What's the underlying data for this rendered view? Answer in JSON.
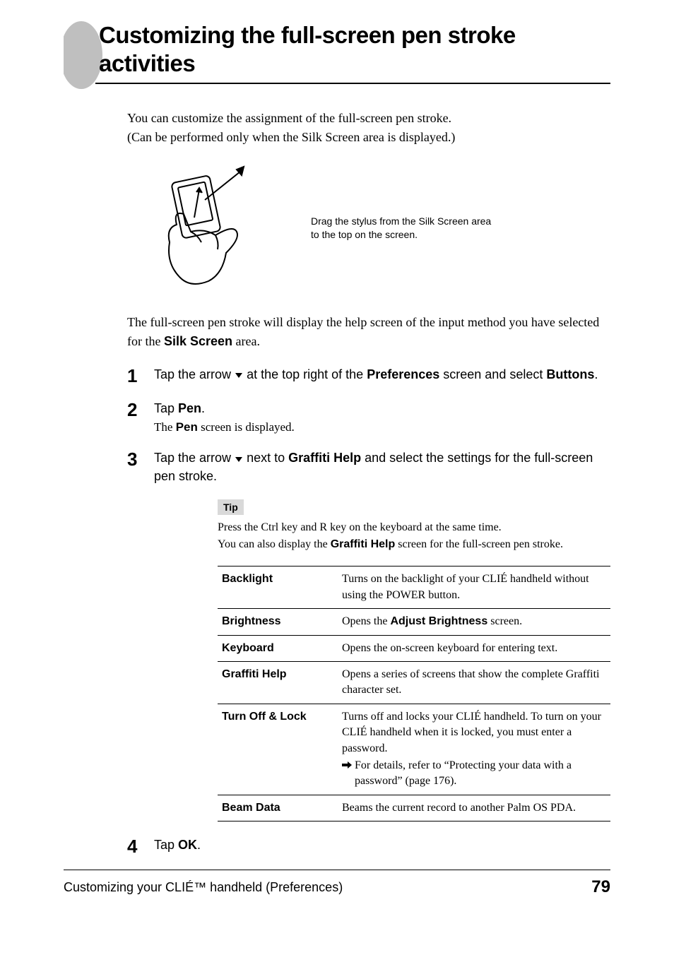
{
  "title": "Customizing the full-screen pen stroke activities",
  "intro_lines": [
    "You can customize the assignment of the full-screen pen stroke.",
    "(Can be performed only when the Silk Screen area is displayed.)"
  ],
  "figure_caption": "Drag the stylus from the Silk Screen area to the top on the screen.",
  "after_figure_prefix": "The full-screen pen stroke will display the help screen of the input method you have selected for the ",
  "after_figure_bold": "Silk Screen",
  "after_figure_suffix": " area.",
  "steps": [
    {
      "n": "1",
      "segments": [
        {
          "t": "Tap the arrow ",
          "b": false
        },
        {
          "t": "V",
          "arrow": true
        },
        {
          "t": " at the top right of the ",
          "b": false
        },
        {
          "t": "Preferences",
          "b": true
        },
        {
          "t": " screen and select ",
          "b": false
        },
        {
          "t": "Buttons",
          "b": true
        },
        {
          "t": ".",
          "b": false
        }
      ]
    },
    {
      "n": "2",
      "segments": [
        {
          "t": "Tap ",
          "b": false
        },
        {
          "t": "Pen",
          "b": true
        },
        {
          "t": ".",
          "b": false
        }
      ],
      "sub_prefix": "The ",
      "sub_bold": "Pen",
      "sub_suffix": " screen is displayed."
    },
    {
      "n": "3",
      "segments": [
        {
          "t": "Tap the arrow ",
          "b": false
        },
        {
          "t": "V",
          "arrow": true
        },
        {
          "t": " next to ",
          "b": false
        },
        {
          "t": "Graffiti Help",
          "b": true
        },
        {
          "t": " and select the settings for the full-screen pen stroke.",
          "b": false
        }
      ]
    },
    {
      "n": "4",
      "segments": [
        {
          "t": "Tap ",
          "b": false
        },
        {
          "t": "OK",
          "b": true
        },
        {
          "t": ".",
          "b": false
        }
      ]
    }
  ],
  "tip": {
    "label": "Tip",
    "line1": "Press the Ctrl key and R key on the keyboard at the same time.",
    "line2_prefix": "You can also display the ",
    "line2_bold": "Graffiti Help",
    "line2_suffix": " screen for the full-screen pen stroke."
  },
  "table": [
    {
      "name": "Backlight",
      "desc": "Turns on the backlight of your CLIÉ handheld without using the POWER button."
    },
    {
      "name": "Brightness",
      "desc_prefix": "Opens the ",
      "desc_bold": "Adjust Brightness",
      "desc_suffix": " screen."
    },
    {
      "name": "Keyboard",
      "desc": "Opens the on-screen keyboard for entering text."
    },
    {
      "name": "Graffiti Help",
      "desc": "Opens a series of screens that show the complete Graffiti character set."
    },
    {
      "name": "Turn Off & Lock",
      "desc": "Turns off and locks your CLIÉ handheld. To turn on your CLIÉ handheld when it is locked, you must enter a password.",
      "sub": "For details, refer to “Protecting your data with a password” (page 176)."
    },
    {
      "name": "Beam Data",
      "desc": "Beams the current record to another Palm OS PDA."
    }
  ],
  "footer": {
    "text": "Customizing your CLIÉ™ handheld (Preferences)",
    "page": "79"
  },
  "colors": {
    "accent_gray": "#bfbfbf",
    "text": "#000000"
  }
}
